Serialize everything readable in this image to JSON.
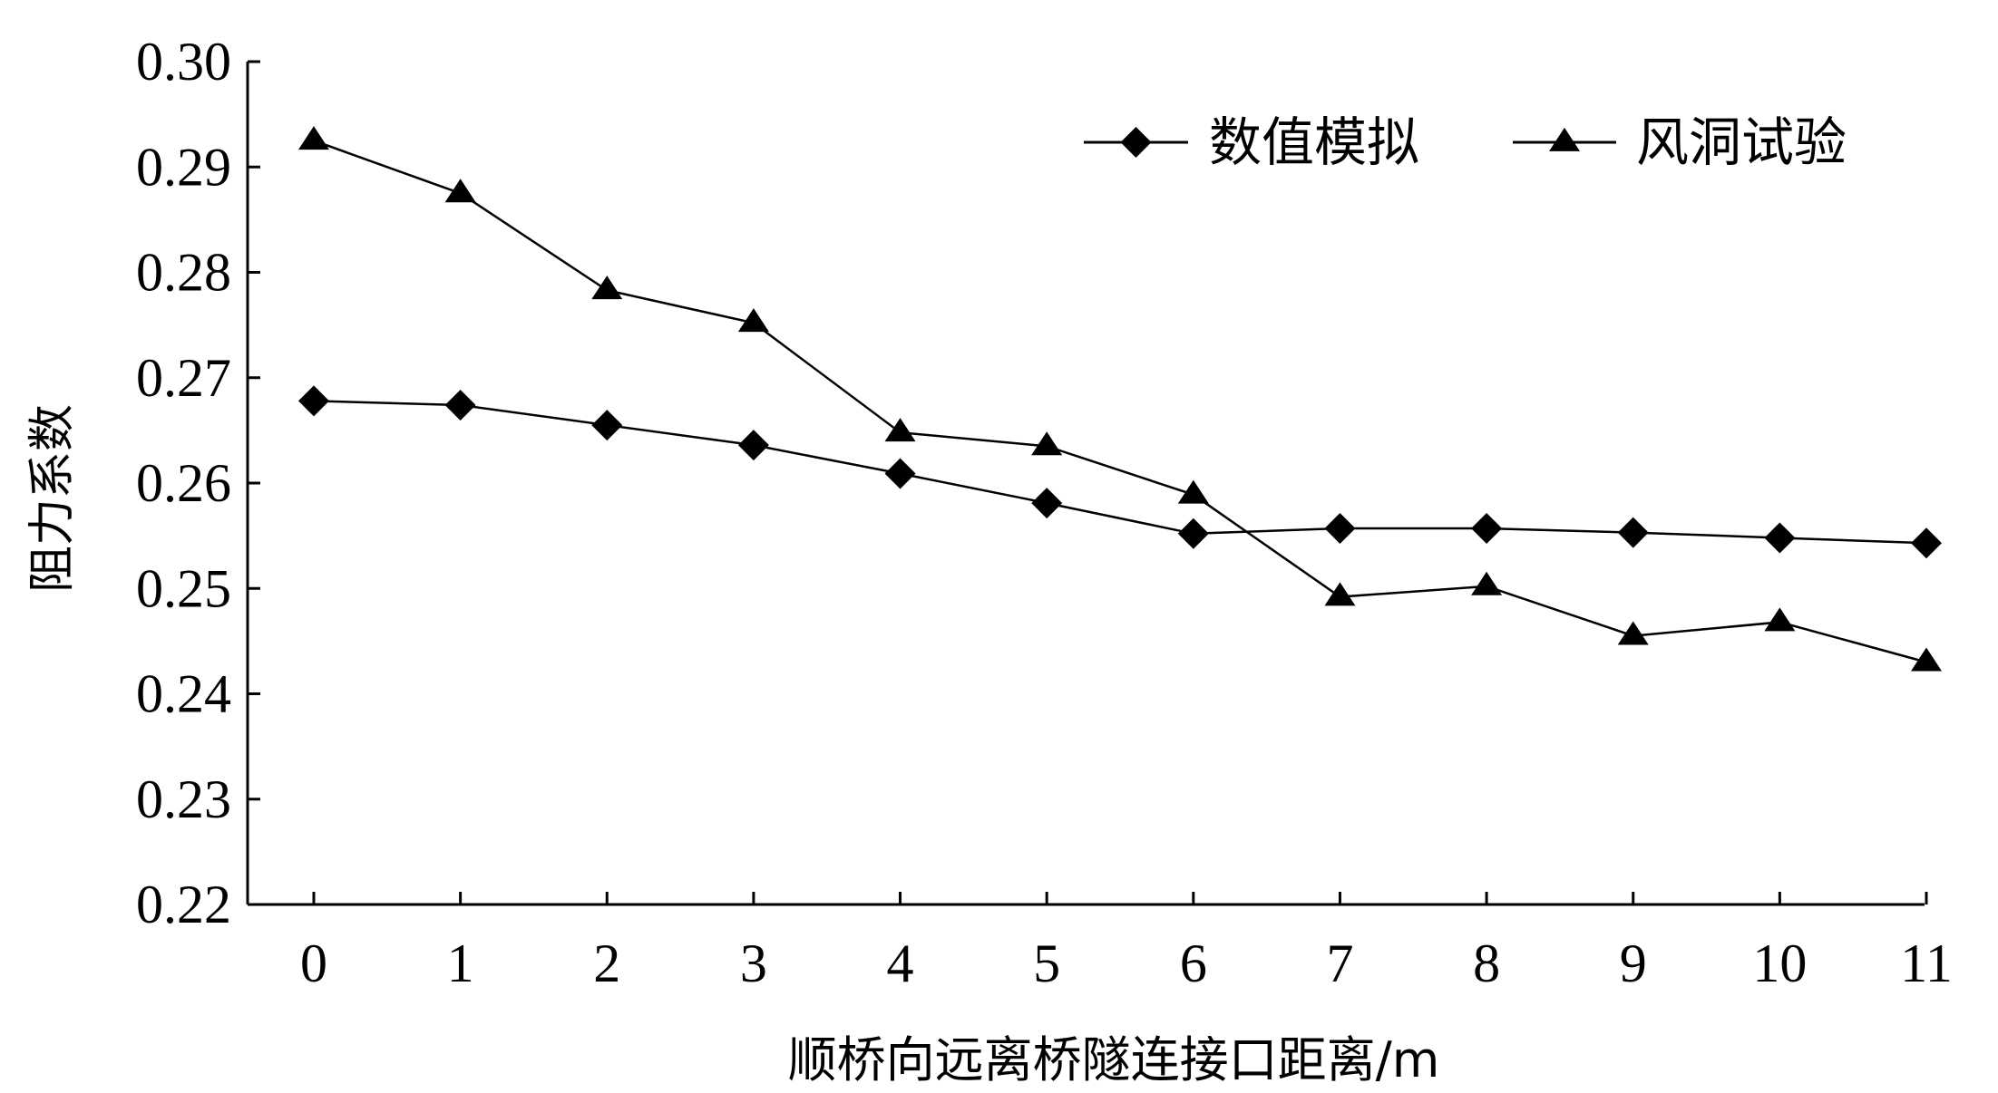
{
  "chart_data": {
    "type": "line",
    "x": [
      0,
      1,
      2,
      3,
      4,
      5,
      6,
      7,
      8,
      9,
      10,
      11
    ],
    "x_tick_labels": [
      "0",
      "1",
      "2",
      "3",
      "4",
      "5",
      "6",
      "7",
      "8",
      "9",
      "10",
      "11"
    ],
    "y_tick_labels": [
      "0.22",
      "0.23",
      "0.24",
      "0.25",
      "0.26",
      "0.27",
      "0.28",
      "0.29",
      "0.30"
    ],
    "y_ticks": [
      0.22,
      0.23,
      0.24,
      0.25,
      0.26,
      0.27,
      0.28,
      0.29,
      0.3
    ],
    "ylim": [
      0.22,
      0.3
    ],
    "xlabel": "顺桥向远离桥隧连接口距离/m",
    "ylabel": "阻力系数",
    "title": "",
    "grid": false,
    "legend_position": "top-right",
    "series": [
      {
        "name": "数值模拟",
        "marker": "diamond",
        "color": "#000000",
        "values": [
          0.2678,
          0.2674,
          0.2655,
          0.2636,
          0.2609,
          0.2581,
          0.2552,
          0.2557,
          0.2557,
          0.2553,
          0.2548,
          0.2543
        ]
      },
      {
        "name": "风洞试验",
        "marker": "triangle",
        "color": "#000000",
        "values": [
          0.2925,
          0.2875,
          0.2783,
          0.2752,
          0.2648,
          0.2635,
          0.2589,
          0.2492,
          0.2502,
          0.2455,
          0.2468,
          0.243
        ]
      }
    ]
  }
}
